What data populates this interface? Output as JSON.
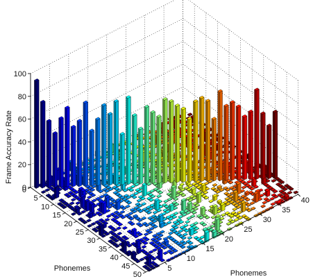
{
  "chart_data": {
    "type": "bar",
    "style": "3d-bar",
    "colormap": "jet",
    "grid": true,
    "zlabel": "Frame Accuracy Rate",
    "xlabel": "Phonemes",
    "ylabel": "Phonemes",
    "zlim": [
      0,
      100
    ],
    "zticks": [
      0,
      20,
      40,
      60,
      80,
      100
    ],
    "xlim": [
      0,
      40
    ],
    "xticks": [
      5,
      10,
      15,
      20,
      25,
      30,
      35,
      40
    ],
    "ylim": [
      0,
      50
    ],
    "yticks": [
      0,
      5,
      10,
      15,
      20,
      25,
      30,
      35,
      40,
      45,
      50
    ],
    "diagonal_values": [
      94,
      75,
      58,
      47,
      60,
      69,
      52,
      57,
      73,
      48,
      58,
      70,
      62,
      73,
      44,
      76,
      60,
      48,
      67,
      62,
      58,
      73,
      71,
      67,
      64,
      55,
      70,
      73,
      70,
      54,
      78,
      65,
      68,
      64,
      55,
      59,
      78,
      57,
      46,
      58
    ]
  }
}
